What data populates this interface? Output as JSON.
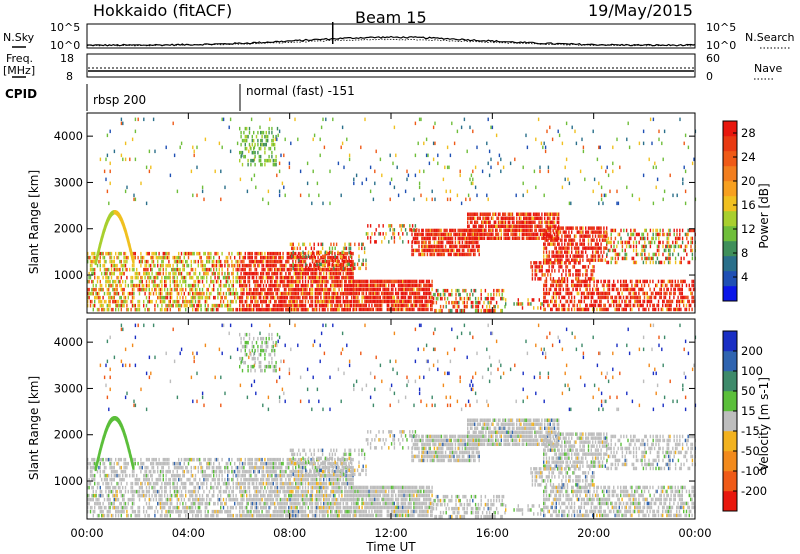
{
  "header": {
    "station": "Hokkaido (fitACF)",
    "beam": "Beam 15",
    "date": "19/May/2015"
  },
  "top_panels": {
    "nsky_label": "N.Sky",
    "nsearch_label": "N.Search",
    "nsky_ticks": [
      "10^5",
      "10^0"
    ],
    "nsearch_ticks": [
      "10^5",
      "10^0"
    ],
    "freq_label_1": "Freq.",
    "freq_label_2": "[MHz]",
    "freq_ticks": [
      "18",
      "8"
    ],
    "nave_label": "Nave",
    "nave_ticks": [
      "60",
      "0"
    ],
    "cpid_label": "CPID",
    "cpid_segments": [
      {
        "name": "rbsp 200",
        "start_hour": 0
      },
      {
        "name": "normal (fast) -151",
        "start_hour": 6
      }
    ]
  },
  "chart_data": [
    {
      "type": "heatmap",
      "title": "",
      "xlabel": "Time UT",
      "ylabel": "Slant Range [km]",
      "xlim": [
        0,
        24
      ],
      "ylim": [
        180,
        4500
      ],
      "x_ticks": [
        "00:00",
        "04:00",
        "08:00",
        "12:00",
        "16:00",
        "20:00",
        "00:00"
      ],
      "y_ticks": [
        1000,
        2000,
        3000,
        4000
      ],
      "colorbar": {
        "label": "Power [dB]",
        "ticks": [
          "4",
          "8",
          "12",
          "16",
          "20",
          "24",
          "28"
        ],
        "range": [
          0,
          30
        ],
        "colors": [
          "#0b16e8",
          "#1f4fb4",
          "#2a6f8a",
          "#3f8f5a",
          "#6fbe3a",
          "#a8cf2e",
          "#f0c020",
          "#f7a020",
          "#f27e1e",
          "#ef5a17",
          "#e93a12",
          "#e8170d"
        ]
      }
    },
    {
      "type": "heatmap",
      "title": "",
      "xlabel": "Time UT",
      "ylabel": "Slant Range [km]",
      "xlim": [
        0,
        24
      ],
      "ylim": [
        180,
        4500
      ],
      "x_ticks": [
        "00:00",
        "04:00",
        "08:00",
        "12:00",
        "16:00",
        "20:00",
        "00:00"
      ],
      "y_ticks": [
        1000,
        2000,
        3000,
        4000
      ],
      "colorbar": {
        "label": "Velocity [m s-1]",
        "ticks": [
          "200",
          "100",
          "50",
          "15",
          "-15",
          "-50",
          "-100",
          "-200"
        ],
        "colors": [
          "#1a2fc4",
          "#2f64b0",
          "#3e8a6a",
          "#5bbf3a",
          "#bdbdbd",
          "#f2b21f",
          "#f28a1c",
          "#ef5a17",
          "#e8170d"
        ]
      }
    }
  ]
}
